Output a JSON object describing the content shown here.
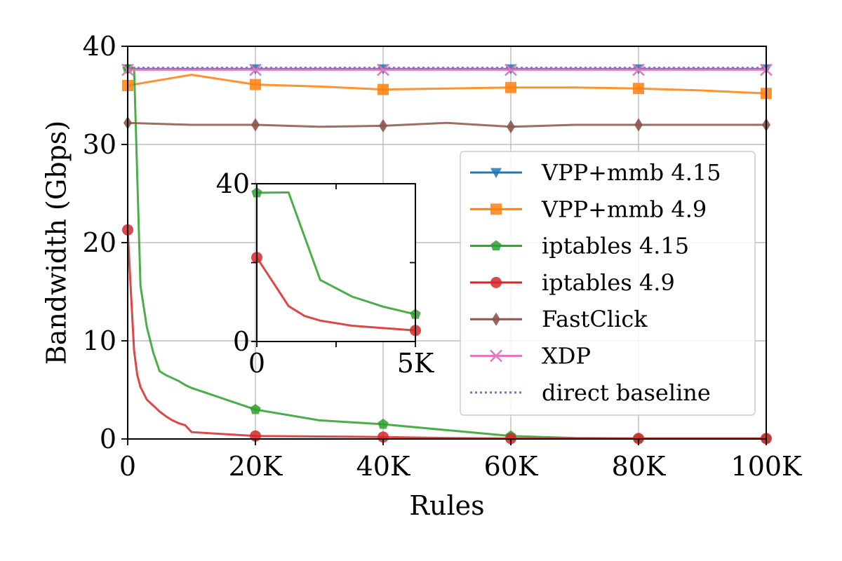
{
  "chart_data": {
    "type": "line",
    "xlabel": "Rules",
    "ylabel": "Bandwidth (Gbps)",
    "xlim": [
      0,
      100000
    ],
    "ylim": [
      0,
      40
    ],
    "x_ticks": [
      0,
      20000,
      40000,
      60000,
      80000,
      100000
    ],
    "x_tick_labels": [
      "0",
      "20K",
      "40K",
      "60K",
      "80K",
      "100K"
    ],
    "y_ticks": [
      0,
      10,
      20,
      30,
      40
    ],
    "y_tick_labels": [
      "0",
      "10",
      "20",
      "30",
      "40"
    ],
    "grid": true,
    "legend_position": "right",
    "series": [
      {
        "name": "VPP+mmb 4.15",
        "color": "#1f77b4",
        "marker": "triangle-down",
        "style": "solid",
        "x": [
          0,
          20000,
          40000,
          60000,
          80000,
          100000
        ],
        "y": [
          37.7,
          37.7,
          37.7,
          37.7,
          37.7,
          37.7
        ],
        "marker_x": [
          0,
          20000,
          40000,
          60000,
          80000,
          100000
        ]
      },
      {
        "name": "VPP+mmb 4.9",
        "color": "#ff7f0e",
        "marker": "square",
        "style": "solid",
        "x": [
          0,
          10000,
          20000,
          30000,
          40000,
          50000,
          60000,
          70000,
          80000,
          90000,
          100000
        ],
        "y": [
          36.0,
          37.1,
          36.1,
          35.9,
          35.6,
          35.7,
          35.8,
          35.8,
          35.7,
          35.5,
          35.2
        ],
        "marker_x": [
          0,
          20000,
          40000,
          60000,
          80000,
          100000
        ]
      },
      {
        "name": "iptables 4.15",
        "color": "#2ca02c",
        "marker": "pentagon",
        "style": "solid",
        "x": [
          0,
          500,
          1000,
          2000,
          3000,
          4000,
          5000,
          6000,
          7000,
          8000,
          9000,
          10000,
          20000,
          30000,
          40000,
          50000,
          60000,
          70000,
          80000,
          90000,
          100000
        ],
        "y": [
          37.7,
          37.7,
          37.8,
          15.6,
          11.4,
          8.8,
          6.9,
          6.5,
          6.2,
          5.9,
          5.5,
          5.2,
          3.0,
          1.9,
          1.5,
          0.9,
          0.3,
          0.1,
          0.05,
          0.05,
          0.05
        ],
        "marker_x": [
          0,
          20000,
          40000,
          60000,
          80000,
          100000
        ]
      },
      {
        "name": "iptables 4.9",
        "color": "#d62728",
        "marker": "circle",
        "style": "solid",
        "x": [
          0,
          500,
          1000,
          1500,
          2000,
          3000,
          4000,
          5000,
          6000,
          7000,
          8000,
          9000,
          10000,
          20000,
          30000,
          40000,
          50000,
          60000,
          70000,
          80000,
          90000,
          100000
        ],
        "y": [
          21.3,
          15.0,
          9.0,
          6.5,
          5.3,
          4.0,
          3.4,
          2.8,
          2.3,
          1.9,
          1.6,
          1.4,
          0.7,
          0.3,
          0.25,
          0.2,
          0.1,
          0.05,
          0.05,
          0.05,
          0.05,
          0.05
        ],
        "marker_x": [
          0,
          20000,
          40000,
          60000,
          80000,
          100000
        ]
      },
      {
        "name": "FastClick",
        "color": "#8c564b",
        "marker": "diamond",
        "style": "solid",
        "x": [
          0,
          10000,
          20000,
          30000,
          40000,
          50000,
          60000,
          70000,
          80000,
          90000,
          100000
        ],
        "y": [
          32.2,
          32.0,
          32.0,
          31.8,
          31.9,
          32.2,
          31.8,
          32.0,
          32.0,
          32.0,
          32.0
        ],
        "marker_x": [
          0,
          20000,
          40000,
          60000,
          80000,
          100000
        ]
      },
      {
        "name": "XDP",
        "color": "#e377c2",
        "marker": "x",
        "style": "solid",
        "x": [
          0,
          20000,
          40000,
          60000,
          80000,
          100000
        ],
        "y": [
          37.6,
          37.6,
          37.6,
          37.6,
          37.6,
          37.6
        ],
        "marker_x": [
          0,
          20000,
          40000,
          60000,
          80000,
          100000
        ]
      },
      {
        "name": "direct baseline",
        "color": "#9467bd",
        "marker": "none",
        "style": "dotted",
        "x": [
          0,
          100000
        ],
        "y": [
          37.8,
          37.8
        ],
        "marker_x": []
      }
    ],
    "inset": {
      "xlim": [
        0,
        5000
      ],
      "ylim": [
        0,
        40
      ],
      "x_ticks": [
        0,
        2500,
        5000
      ],
      "x_tick_labels": [
        "0",
        "5K"
      ],
      "x_labeled_ticks": [
        0,
        5000
      ],
      "y_ticks": [
        0,
        20,
        40
      ],
      "y_tick_labels": [
        "0",
        "40"
      ],
      "y_labeled_ticks": [
        0,
        40
      ],
      "grid": false,
      "series": [
        {
          "name": "iptables 4.15",
          "color": "#2ca02c",
          "marker": "pentagon",
          "x": [
            0,
            1000,
            2000,
            3000,
            4000,
            5000
          ],
          "y": [
            37.7,
            37.8,
            15.6,
            11.4,
            8.8,
            6.9
          ],
          "marker_x": [
            0,
            5000
          ]
        },
        {
          "name": "iptables 4.9",
          "color": "#d62728",
          "marker": "circle",
          "x": [
            0,
            1000,
            1500,
            2000,
            3000,
            4000,
            5000
          ],
          "y": [
            21.3,
            9.0,
            6.5,
            5.3,
            4.0,
            3.4,
            2.8
          ],
          "marker_x": [
            0,
            5000
          ]
        }
      ]
    }
  }
}
